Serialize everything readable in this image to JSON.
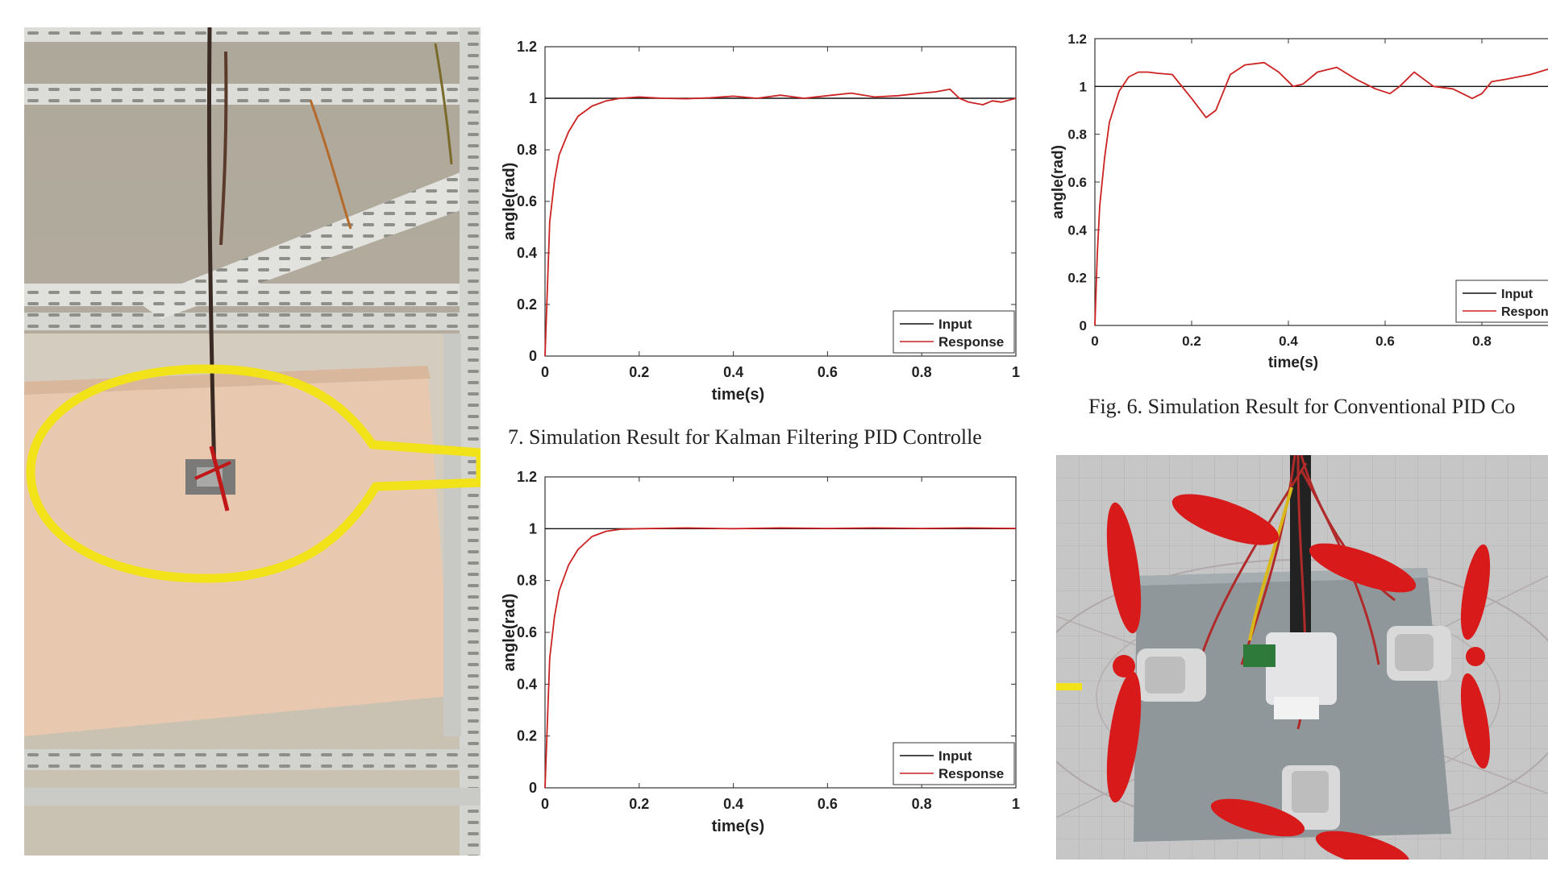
{
  "captions": {
    "fig6": "Fig. 6. Simulation Result for Conventional PID Co",
    "fig7": "7. Simulation Result for Kalman Filtering PID Controlle"
  },
  "colors": {
    "input_line": "#111111",
    "response_line": "#cc2222",
    "highlight_ring": "#f2e21a",
    "rig_frame": "#dcdcd8",
    "base_board": "#e8c9b0",
    "plate": "#8f979b",
    "propeller": "#d81a1a"
  },
  "chart_data": [
    {
      "id": "kalman_top",
      "type": "line",
      "title": "",
      "xlabel": "time(s)",
      "ylabel": "angle(rad)",
      "xlim": [
        0,
        1
      ],
      "ylim": [
        0,
        1.2
      ],
      "xticks": [
        0,
        0.2,
        0.4,
        0.6,
        0.8,
        1
      ],
      "xtick_labels": [
        "0",
        "0.2",
        "0.4",
        "0.6",
        "0.8",
        "1"
      ],
      "yticks": [
        0,
        0.2,
        0.4,
        0.6,
        0.8,
        1,
        1.2
      ],
      "ytick_labels": [
        "0",
        "0.2",
        "0.4",
        "0.6",
        "0.8",
        "1",
        "1.2"
      ],
      "grid": false,
      "legend": "bottom-right",
      "series": [
        {
          "name": "Input",
          "x": [
            0,
            1
          ],
          "y": [
            1,
            1
          ]
        },
        {
          "name": "Response",
          "x": [
            0,
            0.01,
            0.02,
            0.03,
            0.05,
            0.07,
            0.1,
            0.13,
            0.16,
            0.2,
            0.25,
            0.3,
            0.35,
            0.4,
            0.45,
            0.5,
            0.55,
            0.6,
            0.65,
            0.7,
            0.75,
            0.8,
            0.83,
            0.86,
            0.88,
            0.9,
            0.93,
            0.95,
            0.97,
            1.0
          ],
          "y": [
            0,
            0.52,
            0.68,
            0.78,
            0.87,
            0.93,
            0.97,
            0.99,
            1.0,
            1.005,
            1.0,
            0.998,
            1.002,
            1.008,
            1.0,
            1.012,
            1.0,
            1.01,
            1.02,
            1.005,
            1.01,
            1.02,
            1.025,
            1.035,
            1.0,
            0.985,
            0.975,
            0.99,
            0.985,
            1.0
          ]
        }
      ]
    },
    {
      "id": "kalman_bottom",
      "type": "line",
      "title": "",
      "xlabel": "time(s)",
      "ylabel": "angle(rad)",
      "xlim": [
        0,
        1
      ],
      "ylim": [
        0,
        1.2
      ],
      "xticks": [
        0,
        0.2,
        0.4,
        0.6,
        0.8,
        1
      ],
      "xtick_labels": [
        "0",
        "0.2",
        "0.4",
        "0.6",
        "0.8",
        "1"
      ],
      "yticks": [
        0,
        0.2,
        0.4,
        0.6,
        0.8,
        1,
        1.2
      ],
      "ytick_labels": [
        "0",
        "0.2",
        "0.4",
        "0.6",
        "0.8",
        "1",
        "1.2"
      ],
      "grid": false,
      "legend": "bottom-right",
      "series": [
        {
          "name": "Input",
          "x": [
            0,
            1
          ],
          "y": [
            1,
            1
          ]
        },
        {
          "name": "Response",
          "x": [
            0,
            0.01,
            0.02,
            0.03,
            0.05,
            0.07,
            0.1,
            0.13,
            0.16,
            0.2,
            0.3,
            0.4,
            0.5,
            0.6,
            0.7,
            0.8,
            0.9,
            1.0
          ],
          "y": [
            0,
            0.5,
            0.66,
            0.76,
            0.86,
            0.92,
            0.97,
            0.99,
            0.998,
            1.0,
            1.003,
            1.0,
            1.003,
            1.001,
            1.003,
            1.001,
            1.003,
            1.001
          ]
        }
      ]
    },
    {
      "id": "conventional",
      "type": "line",
      "title": "",
      "xlabel": "time(s)",
      "ylabel": "angle(rad)",
      "xlim": [
        0,
        1
      ],
      "ylim": [
        0,
        1.2
      ],
      "xticks": [
        0,
        0.2,
        0.4,
        0.6,
        0.8
      ],
      "xtick_labels": [
        "0",
        "0.2",
        "0.4",
        "0.6",
        "0.8"
      ],
      "yticks": [
        0,
        0.2,
        0.4,
        0.6,
        0.8,
        1,
        1.2
      ],
      "ytick_labels": [
        "0",
        "0.2",
        "0.4",
        "0.6",
        "0.8",
        "1",
        "1.2"
      ],
      "grid": false,
      "legend": "bottom-right",
      "series": [
        {
          "name": "Input",
          "x": [
            0,
            1
          ],
          "y": [
            1,
            1
          ]
        },
        {
          "name": "Response",
          "x": [
            0,
            0.005,
            0.01,
            0.02,
            0.03,
            0.05,
            0.07,
            0.09,
            0.11,
            0.13,
            0.16,
            0.2,
            0.23,
            0.25,
            0.28,
            0.31,
            0.35,
            0.38,
            0.41,
            0.43,
            0.46,
            0.5,
            0.54,
            0.58,
            0.61,
            0.63,
            0.66,
            0.7,
            0.74,
            0.78,
            0.8,
            0.82,
            0.85,
            0.9,
            0.95,
            1.0
          ],
          "y": [
            0,
            0.3,
            0.5,
            0.7,
            0.85,
            0.98,
            1.04,
            1.06,
            1.06,
            1.055,
            1.05,
            0.95,
            0.87,
            0.9,
            1.05,
            1.09,
            1.1,
            1.06,
            1.0,
            1.01,
            1.06,
            1.08,
            1.03,
            0.99,
            0.97,
            1.0,
            1.06,
            1.0,
            0.99,
            0.95,
            0.97,
            1.02,
            1.03,
            1.05,
            1.08,
            1.11
          ]
        }
      ]
    }
  ]
}
